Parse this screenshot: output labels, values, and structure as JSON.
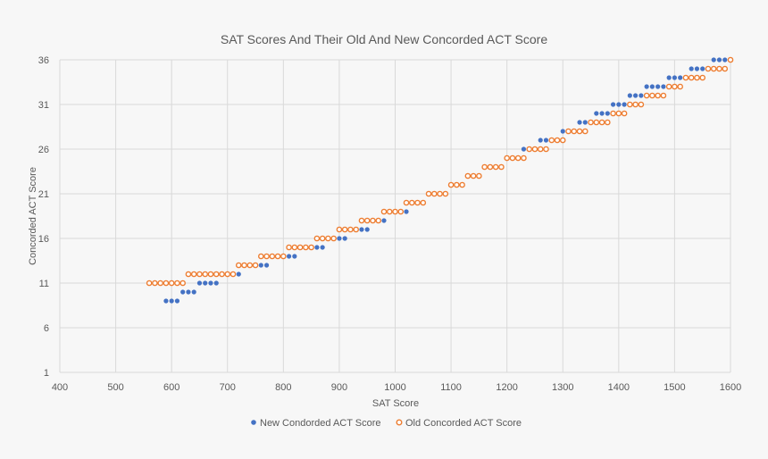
{
  "chart_data": {
    "type": "scatter",
    "title": "SAT Scores And Their Old And New Concorded ACT Score",
    "xlabel": "SAT Score",
    "ylabel": "Concorded ACT Score",
    "xlim": [
      400,
      1600
    ],
    "ylim": [
      1,
      36
    ],
    "x_ticks": [
      400,
      500,
      600,
      700,
      800,
      900,
      1000,
      1100,
      1200,
      1300,
      1400,
      1500,
      1600
    ],
    "y_ticks": [
      1,
      6,
      11,
      16,
      21,
      26,
      31,
      36
    ],
    "grid": true,
    "legend_position": "bottom",
    "series": [
      {
        "name": "New Condorded ACT Score",
        "color": "#4472c4",
        "marker": "filled-circle",
        "points": [
          [
            590,
            9
          ],
          [
            600,
            9
          ],
          [
            610,
            9
          ],
          [
            620,
            10
          ],
          [
            630,
            10
          ],
          [
            640,
            10
          ],
          [
            650,
            11
          ],
          [
            660,
            11
          ],
          [
            670,
            11
          ],
          [
            680,
            11
          ],
          [
            690,
            12
          ],
          [
            700,
            12
          ],
          [
            710,
            12
          ],
          [
            720,
            12
          ],
          [
            730,
            13
          ],
          [
            740,
            13
          ],
          [
            750,
            13
          ],
          [
            760,
            13
          ],
          [
            770,
            13
          ],
          [
            780,
            14
          ],
          [
            790,
            14
          ],
          [
            800,
            14
          ],
          [
            810,
            14
          ],
          [
            820,
            14
          ],
          [
            830,
            15
          ],
          [
            840,
            15
          ],
          [
            850,
            15
          ],
          [
            860,
            15
          ],
          [
            870,
            15
          ],
          [
            880,
            16
          ],
          [
            890,
            16
          ],
          [
            900,
            16
          ],
          [
            910,
            16
          ],
          [
            920,
            17
          ],
          [
            930,
            17
          ],
          [
            940,
            17
          ],
          [
            950,
            17
          ],
          [
            960,
            18
          ],
          [
            970,
            18
          ],
          [
            980,
            18
          ],
          [
            990,
            19
          ],
          [
            1000,
            19
          ],
          [
            1010,
            19
          ],
          [
            1020,
            19
          ],
          [
            1030,
            20
          ],
          [
            1040,
            20
          ],
          [
            1050,
            20
          ],
          [
            1060,
            21
          ],
          [
            1070,
            21
          ],
          [
            1080,
            21
          ],
          [
            1090,
            21
          ],
          [
            1100,
            22
          ],
          [
            1110,
            22
          ],
          [
            1120,
            22
          ],
          [
            1130,
            23
          ],
          [
            1140,
            23
          ],
          [
            1150,
            23
          ],
          [
            1160,
            24
          ],
          [
            1170,
            24
          ],
          [
            1180,
            24
          ],
          [
            1190,
            24
          ],
          [
            1200,
            25
          ],
          [
            1210,
            25
          ],
          [
            1220,
            25
          ],
          [
            1230,
            26
          ],
          [
            1240,
            26
          ],
          [
            1250,
            26
          ],
          [
            1260,
            27
          ],
          [
            1270,
            27
          ],
          [
            1280,
            27
          ],
          [
            1290,
            27
          ],
          [
            1300,
            28
          ],
          [
            1310,
            28
          ],
          [
            1320,
            28
          ],
          [
            1330,
            29
          ],
          [
            1340,
            29
          ],
          [
            1350,
            29
          ],
          [
            1360,
            30
          ],
          [
            1370,
            30
          ],
          [
            1380,
            30
          ],
          [
            1390,
            31
          ],
          [
            1400,
            31
          ],
          [
            1410,
            31
          ],
          [
            1420,
            32
          ],
          [
            1430,
            32
          ],
          [
            1440,
            32
          ],
          [
            1450,
            33
          ],
          [
            1460,
            33
          ],
          [
            1470,
            33
          ],
          [
            1480,
            33
          ],
          [
            1490,
            34
          ],
          [
            1500,
            34
          ],
          [
            1510,
            34
          ],
          [
            1520,
            34
          ],
          [
            1530,
            35
          ],
          [
            1540,
            35
          ],
          [
            1550,
            35
          ],
          [
            1560,
            35
          ],
          [
            1570,
            36
          ],
          [
            1580,
            36
          ],
          [
            1590,
            36
          ],
          [
            1600,
            36
          ]
        ]
      },
      {
        "name": "Old Concorded ACT Score",
        "color": "#ed7d31",
        "marker": "hollow-circle",
        "points": [
          [
            560,
            11
          ],
          [
            570,
            11
          ],
          [
            580,
            11
          ],
          [
            590,
            11
          ],
          [
            600,
            11
          ],
          [
            610,
            11
          ],
          [
            620,
            11
          ],
          [
            630,
            12
          ],
          [
            640,
            12
          ],
          [
            650,
            12
          ],
          [
            660,
            12
          ],
          [
            670,
            12
          ],
          [
            680,
            12
          ],
          [
            690,
            12
          ],
          [
            700,
            12
          ],
          [
            710,
            12
          ],
          [
            720,
            13
          ],
          [
            730,
            13
          ],
          [
            740,
            13
          ],
          [
            750,
            13
          ],
          [
            760,
            14
          ],
          [
            770,
            14
          ],
          [
            780,
            14
          ],
          [
            790,
            14
          ],
          [
            800,
            14
          ],
          [
            810,
            15
          ],
          [
            820,
            15
          ],
          [
            830,
            15
          ],
          [
            840,
            15
          ],
          [
            850,
            15
          ],
          [
            860,
            16
          ],
          [
            870,
            16
          ],
          [
            880,
            16
          ],
          [
            890,
            16
          ],
          [
            900,
            17
          ],
          [
            910,
            17
          ],
          [
            920,
            17
          ],
          [
            930,
            17
          ],
          [
            940,
            18
          ],
          [
            950,
            18
          ],
          [
            960,
            18
          ],
          [
            970,
            18
          ],
          [
            980,
            19
          ],
          [
            990,
            19
          ],
          [
            1000,
            19
          ],
          [
            1010,
            19
          ],
          [
            1020,
            20
          ],
          [
            1030,
            20
          ],
          [
            1040,
            20
          ],
          [
            1050,
            20
          ],
          [
            1060,
            21
          ],
          [
            1070,
            21
          ],
          [
            1080,
            21
          ],
          [
            1090,
            21
          ],
          [
            1100,
            22
          ],
          [
            1110,
            22
          ],
          [
            1120,
            22
          ],
          [
            1130,
            23
          ],
          [
            1140,
            23
          ],
          [
            1150,
            23
          ],
          [
            1160,
            24
          ],
          [
            1170,
            24
          ],
          [
            1180,
            24
          ],
          [
            1190,
            24
          ],
          [
            1200,
            25
          ],
          [
            1210,
            25
          ],
          [
            1220,
            25
          ],
          [
            1230,
            25
          ],
          [
            1240,
            26
          ],
          [
            1250,
            26
          ],
          [
            1260,
            26
          ],
          [
            1270,
            26
          ],
          [
            1280,
            27
          ],
          [
            1290,
            27
          ],
          [
            1300,
            27
          ],
          [
            1310,
            28
          ],
          [
            1320,
            28
          ],
          [
            1330,
            28
          ],
          [
            1340,
            28
          ],
          [
            1350,
            29
          ],
          [
            1360,
            29
          ],
          [
            1370,
            29
          ],
          [
            1380,
            29
          ],
          [
            1390,
            30
          ],
          [
            1400,
            30
          ],
          [
            1410,
            30
          ],
          [
            1420,
            31
          ],
          [
            1430,
            31
          ],
          [
            1440,
            31
          ],
          [
            1450,
            32
          ],
          [
            1460,
            32
          ],
          [
            1470,
            32
          ],
          [
            1480,
            32
          ],
          [
            1490,
            33
          ],
          [
            1500,
            33
          ],
          [
            1510,
            33
          ],
          [
            1520,
            34
          ],
          [
            1530,
            34
          ],
          [
            1540,
            34
          ],
          [
            1550,
            34
          ],
          [
            1560,
            35
          ],
          [
            1570,
            35
          ],
          [
            1580,
            35
          ],
          [
            1590,
            35
          ],
          [
            1600,
            36
          ]
        ]
      }
    ]
  }
}
